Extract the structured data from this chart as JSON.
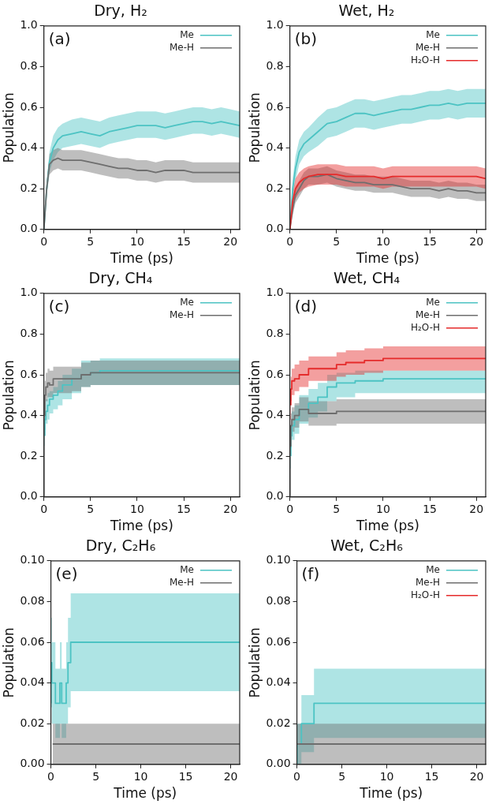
{
  "chart_data": [
    {
      "type": "line",
      "title": "Dry, H₂",
      "xlabel": "Time (ps)",
      "ylabel": "Population",
      "annotations": [
        "(a)"
      ],
      "legend": "top right",
      "xlim": [
        0,
        21
      ],
      "xticks": [
        0,
        5,
        10,
        15,
        20
      ],
      "ylim": [
        0,
        1
      ],
      "yticks": [
        {
          "value": 0,
          "label": "0.0"
        },
        {
          "value": 0.2,
          "label": "0.2"
        },
        {
          "value": 0.4,
          "label": "0.4"
        },
        {
          "value": 0.6,
          "label": "0.6"
        },
        {
          "value": 0.8,
          "label": "0.8"
        },
        {
          "value": 1,
          "label": "1.0"
        }
      ],
      "series": [
        {
          "name": "Me",
          "color": "#4cc3c3",
          "x": [
            0,
            0.3,
            0.6,
            1,
            1.5,
            2,
            3,
            4,
            5,
            6,
            7,
            8,
            9,
            10,
            11,
            12,
            13,
            14,
            15,
            16,
            17,
            18,
            19,
            20,
            21
          ],
          "values": [
            0,
            0.2,
            0.33,
            0.4,
            0.44,
            0.46,
            0.47,
            0.48,
            0.47,
            0.46,
            0.48,
            0.49,
            0.5,
            0.51,
            0.51,
            0.51,
            0.5,
            0.51,
            0.52,
            0.53,
            0.53,
            0.52,
            0.53,
            0.52,
            0.51
          ],
          "lower": [
            0,
            0.16,
            0.28,
            0.34,
            0.38,
            0.4,
            0.41,
            0.42,
            0.41,
            0.4,
            0.42,
            0.43,
            0.44,
            0.45,
            0.45,
            0.45,
            0.44,
            0.45,
            0.46,
            0.47,
            0.47,
            0.46,
            0.47,
            0.46,
            0.45
          ],
          "upper": [
            0,
            0.24,
            0.38,
            0.46,
            0.5,
            0.52,
            0.54,
            0.55,
            0.54,
            0.53,
            0.55,
            0.56,
            0.57,
            0.58,
            0.58,
            0.58,
            0.57,
            0.58,
            0.59,
            0.6,
            0.6,
            0.59,
            0.6,
            0.59,
            0.58
          ]
        },
        {
          "name": "Me-H",
          "color": "#6e6e6e",
          "x": [
            0,
            0.3,
            0.6,
            1,
            1.5,
            2,
            3,
            4,
            5,
            6,
            7,
            8,
            9,
            10,
            11,
            12,
            13,
            14,
            15,
            16,
            17,
            18,
            19,
            20,
            21
          ],
          "values": [
            0,
            0.2,
            0.32,
            0.34,
            0.35,
            0.34,
            0.34,
            0.34,
            0.33,
            0.32,
            0.31,
            0.3,
            0.3,
            0.29,
            0.29,
            0.28,
            0.29,
            0.29,
            0.29,
            0.28,
            0.28,
            0.28,
            0.28,
            0.28,
            0.28
          ],
          "lower": [
            0,
            0.17,
            0.27,
            0.29,
            0.3,
            0.29,
            0.29,
            0.29,
            0.28,
            0.27,
            0.26,
            0.25,
            0.25,
            0.24,
            0.24,
            0.23,
            0.24,
            0.24,
            0.24,
            0.23,
            0.23,
            0.23,
            0.23,
            0.23,
            0.23
          ],
          "upper": [
            0,
            0.23,
            0.37,
            0.39,
            0.4,
            0.39,
            0.39,
            0.39,
            0.38,
            0.37,
            0.36,
            0.35,
            0.35,
            0.34,
            0.34,
            0.33,
            0.34,
            0.34,
            0.34,
            0.33,
            0.33,
            0.33,
            0.33,
            0.33,
            0.33
          ]
        }
      ]
    },
    {
      "type": "line",
      "title": "Wet, H₂",
      "xlabel": "Time (ps)",
      "ylabel": "Population",
      "annotations": [
        "(b)"
      ],
      "legend": "top right",
      "xlim": [
        0,
        21
      ],
      "xticks": [
        0,
        5,
        10,
        15,
        20
      ],
      "ylim": [
        0,
        1
      ],
      "yticks": [
        {
          "value": 0,
          "label": "0.0"
        },
        {
          "value": 0.2,
          "label": "0.2"
        },
        {
          "value": 0.4,
          "label": "0.4"
        },
        {
          "value": 0.6,
          "label": "0.6"
        },
        {
          "value": 0.8,
          "label": "0.8"
        },
        {
          "value": 1,
          "label": "1.0"
        }
      ],
      "series": [
        {
          "name": "Me",
          "color": "#4cc3c3",
          "x": [
            0,
            0.3,
            0.6,
            1,
            1.5,
            2,
            3,
            4,
            5,
            6,
            7,
            8,
            9,
            10,
            11,
            12,
            13,
            14,
            15,
            16,
            17,
            18,
            19,
            20,
            21
          ],
          "values": [
            0,
            0.2,
            0.3,
            0.38,
            0.42,
            0.44,
            0.48,
            0.52,
            0.53,
            0.55,
            0.57,
            0.57,
            0.56,
            0.57,
            0.58,
            0.59,
            0.59,
            0.6,
            0.61,
            0.61,
            0.62,
            0.61,
            0.62,
            0.62,
            0.62
          ],
          "lower": [
            0,
            0.15,
            0.24,
            0.32,
            0.36,
            0.38,
            0.41,
            0.45,
            0.46,
            0.48,
            0.5,
            0.5,
            0.49,
            0.5,
            0.51,
            0.52,
            0.52,
            0.53,
            0.54,
            0.54,
            0.55,
            0.54,
            0.55,
            0.55,
            0.55
          ],
          "upper": [
            0,
            0.25,
            0.36,
            0.44,
            0.48,
            0.5,
            0.55,
            0.59,
            0.6,
            0.62,
            0.64,
            0.64,
            0.63,
            0.64,
            0.65,
            0.66,
            0.66,
            0.67,
            0.68,
            0.68,
            0.69,
            0.68,
            0.69,
            0.69,
            0.69
          ]
        },
        {
          "name": "Me-H",
          "color": "#6e6e6e",
          "x": [
            0,
            0.3,
            0.6,
            1,
            1.5,
            2,
            3,
            4,
            5,
            6,
            7,
            8,
            9,
            10,
            11,
            12,
            13,
            14,
            15,
            16,
            17,
            18,
            19,
            20,
            21
          ],
          "values": [
            0,
            0.1,
            0.17,
            0.2,
            0.24,
            0.26,
            0.26,
            0.27,
            0.25,
            0.24,
            0.23,
            0.23,
            0.22,
            0.22,
            0.22,
            0.21,
            0.2,
            0.2,
            0.2,
            0.19,
            0.2,
            0.19,
            0.19,
            0.18,
            0.18
          ],
          "lower": [
            0,
            0.07,
            0.13,
            0.16,
            0.2,
            0.22,
            0.22,
            0.23,
            0.21,
            0.2,
            0.19,
            0.19,
            0.18,
            0.18,
            0.18,
            0.17,
            0.16,
            0.16,
            0.16,
            0.15,
            0.16,
            0.15,
            0.15,
            0.14,
            0.14
          ],
          "upper": [
            0,
            0.13,
            0.21,
            0.24,
            0.28,
            0.3,
            0.3,
            0.31,
            0.29,
            0.28,
            0.27,
            0.27,
            0.26,
            0.26,
            0.26,
            0.25,
            0.24,
            0.24,
            0.24,
            0.23,
            0.24,
            0.23,
            0.23,
            0.22,
            0.22
          ]
        },
        {
          "name": "H₂O-H",
          "color": "#e52b2b",
          "x": [
            0,
            0.3,
            0.6,
            1,
            1.5,
            2,
            3,
            4,
            5,
            6,
            7,
            8,
            9,
            10,
            11,
            12,
            13,
            14,
            15,
            16,
            17,
            18,
            19,
            20,
            21
          ],
          "values": [
            0,
            0.14,
            0.2,
            0.23,
            0.25,
            0.26,
            0.27,
            0.27,
            0.27,
            0.26,
            0.26,
            0.26,
            0.26,
            0.25,
            0.26,
            0.26,
            0.26,
            0.26,
            0.26,
            0.26,
            0.26,
            0.26,
            0.26,
            0.26,
            0.25
          ],
          "lower": [
            0,
            0.1,
            0.15,
            0.18,
            0.2,
            0.21,
            0.22,
            0.22,
            0.22,
            0.21,
            0.21,
            0.21,
            0.21,
            0.2,
            0.21,
            0.21,
            0.21,
            0.21,
            0.21,
            0.21,
            0.21,
            0.21,
            0.21,
            0.21,
            0.2
          ],
          "upper": [
            0,
            0.18,
            0.25,
            0.28,
            0.3,
            0.31,
            0.32,
            0.32,
            0.32,
            0.31,
            0.31,
            0.31,
            0.31,
            0.3,
            0.31,
            0.31,
            0.31,
            0.31,
            0.31,
            0.31,
            0.31,
            0.31,
            0.31,
            0.31,
            0.3
          ]
        }
      ]
    },
    {
      "type": "step",
      "title": "Dry, CH₄",
      "xlabel": "Time (ps)",
      "ylabel": "Population",
      "annotations": [
        "(c)"
      ],
      "legend": "top right",
      "xlim": [
        0,
        21
      ],
      "xticks": [
        0,
        5,
        10,
        15,
        20
      ],
      "ylim": [
        0,
        1
      ],
      "yticks": [
        {
          "value": 0,
          "label": "0.0"
        },
        {
          "value": 0.2,
          "label": "0.2"
        },
        {
          "value": 0.4,
          "label": "0.4"
        },
        {
          "value": 0.6,
          "label": "0.6"
        },
        {
          "value": 0.8,
          "label": "0.8"
        },
        {
          "value": 1,
          "label": "1.0"
        }
      ],
      "series": [
        {
          "name": "Me",
          "color": "#4cc3c3",
          "x": [
            0,
            0.1,
            0.2,
            0.4,
            0.6,
            1,
            1.5,
            2,
            3,
            4,
            5,
            6,
            7,
            21
          ],
          "values": [
            null,
            0.3,
            0.38,
            0.42,
            0.45,
            0.48,
            0.5,
            0.52,
            0.55,
            0.58,
            0.6,
            0.61,
            0.62,
            0.62
          ],
          "lower": [
            0,
            0.25,
            0.33,
            0.36,
            0.38,
            0.41,
            0.43,
            0.45,
            0.48,
            0.51,
            0.54,
            0.55,
            0.55,
            0.55
          ],
          "upper": [
            0,
            0.35,
            0.43,
            0.48,
            0.51,
            0.52,
            0.54,
            0.57,
            0.6,
            0.63,
            0.67,
            0.67,
            0.68,
            0.68
          ]
        },
        {
          "name": "Me-H",
          "color": "#6e6e6e",
          "x": [
            0,
            0.1,
            0.2,
            0.4,
            0.6,
            1,
            2,
            3,
            4,
            5,
            6,
            21
          ],
          "values": [
            0,
            0.4,
            0.5,
            0.54,
            0.56,
            0.55,
            0.58,
            0.58,
            0.58,
            0.6,
            0.61,
            0.61
          ],
          "lower": [
            0,
            0.33,
            0.43,
            0.47,
            0.49,
            0.49,
            0.51,
            0.51,
            0.52,
            0.54,
            0.55,
            0.55
          ],
          "upper": [
            0,
            0.47,
            0.57,
            0.61,
            0.63,
            0.62,
            0.64,
            0.64,
            0.64,
            0.66,
            0.67,
            0.67
          ]
        }
      ]
    },
    {
      "type": "step",
      "title": "Wet, CH₄",
      "xlabel": "Time (ps)",
      "ylabel": "Population",
      "annotations": [
        "(d)"
      ],
      "legend": "top right",
      "xlim": [
        0,
        21
      ],
      "xticks": [
        0,
        5,
        10,
        15,
        20
      ],
      "ylim": [
        0,
        1
      ],
      "yticks": [
        {
          "value": 0,
          "label": "0.0"
        },
        {
          "value": 0.2,
          "label": "0.2"
        },
        {
          "value": 0.4,
          "label": "0.4"
        },
        {
          "value": 0.6,
          "label": "0.6"
        },
        {
          "value": 0.8,
          "label": "0.8"
        },
        {
          "value": 1,
          "label": "1.0"
        }
      ],
      "series": [
        {
          "name": "Me",
          "color": "#4cc3c3",
          "x": [
            0,
            0.1,
            0.2,
            0.5,
            1,
            2,
            3,
            4,
            5,
            7,
            10,
            12,
            21
          ],
          "values": [
            null,
            0.2,
            0.3,
            0.35,
            0.38,
            0.43,
            0.46,
            0.49,
            0.54,
            0.56,
            0.57,
            0.58,
            0.58
          ],
          "lower": [
            0,
            0.14,
            0.24,
            0.28,
            0.31,
            0.36,
            0.39,
            0.42,
            0.47,
            0.49,
            0.51,
            0.51,
            0.51
          ],
          "upper": [
            0,
            0.26,
            0.36,
            0.42,
            0.45,
            0.5,
            0.53,
            0.56,
            0.6,
            0.61,
            0.62,
            0.62,
            0.62
          ]
        },
        {
          "name": "Me-H",
          "color": "#6e6e6e",
          "x": [
            0,
            0.1,
            0.2,
            0.5,
            1,
            2,
            3,
            5,
            12,
            21
          ],
          "values": [
            0,
            0.25,
            0.35,
            0.38,
            0.4,
            0.43,
            0.41,
            0.41,
            0.42,
            0.42
          ],
          "lower": [
            0,
            0.2,
            0.29,
            0.32,
            0.34,
            0.37,
            0.35,
            0.35,
            0.36,
            0.36
          ],
          "upper": [
            0,
            0.3,
            0.41,
            0.44,
            0.46,
            0.49,
            0.47,
            0.47,
            0.48,
            0.48
          ]
        },
        {
          "name": "H₂O-H",
          "color": "#e52b2b",
          "x": [
            0,
            0.1,
            0.2,
            0.5,
            1,
            2,
            3,
            5,
            6,
            8,
            10,
            12,
            21
          ],
          "values": [
            null,
            0.45,
            0.53,
            0.57,
            0.58,
            0.6,
            0.63,
            0.63,
            0.65,
            0.66,
            0.67,
            0.68,
            0.68
          ],
          "lower": [
            0,
            0.38,
            0.47,
            0.5,
            0.52,
            0.54,
            0.57,
            0.57,
            0.59,
            0.6,
            0.61,
            0.62,
            0.62
          ],
          "upper": [
            0,
            0.52,
            0.59,
            0.63,
            0.65,
            0.67,
            0.69,
            0.69,
            0.71,
            0.72,
            0.73,
            0.74,
            0.74
          ]
        }
      ]
    },
    {
      "type": "step",
      "title": "Dry, C₂H₆",
      "xlabel": "Time (ps)",
      "ylabel": "Population",
      "annotations": [
        "(e)"
      ],
      "legend": "top right",
      "xlim": [
        0,
        21
      ],
      "xticks": [
        0,
        5,
        10,
        15,
        20
      ],
      "ylim": [
        0,
        0.1
      ],
      "yticks": [
        {
          "value": 0,
          "label": "0.00"
        },
        {
          "value": 0.02,
          "label": "0.02"
        },
        {
          "value": 0.04,
          "label": "0.04"
        },
        {
          "value": 0.06,
          "label": "0.06"
        },
        {
          "value": 0.08,
          "label": "0.08"
        },
        {
          "value": 0.1,
          "label": "0.10"
        }
      ],
      "series": [
        {
          "name": "Me",
          "color": "#4cc3c3",
          "x": [
            0,
            0.1,
            0.5,
            1,
            1.2,
            1.7,
            1.9,
            2.2,
            14.5,
            21
          ],
          "values": [
            0.03,
            0.05,
            0.04,
            0.03,
            0.04,
            0.03,
            0.04,
            0.05,
            0.06,
            0.06
          ],
          "lower": [
            0.02,
            0.028,
            0.02,
            0.013,
            0.02,
            0.013,
            0.02,
            0.028,
            0.036,
            0.036
          ],
          "upper": [
            0.04,
            0.072,
            0.06,
            0.047,
            0.06,
            0.047,
            0.06,
            0.072,
            0.084,
            0.084
          ]
        },
        {
          "name": "Me-H",
          "color": "#6e6e6e",
          "x": [
            0.2,
            21
          ],
          "values": [
            0.01,
            0.01
          ],
          "lower": [
            0,
            0
          ],
          "upper": [
            0.02,
            0.02
          ]
        }
      ]
    },
    {
      "type": "step",
      "title": "Wet, C₂H₆",
      "xlabel": "Time (ps)",
      "ylabel": "Population",
      "annotations": [
        "(f)"
      ],
      "legend": "top right",
      "xlim": [
        0,
        21
      ],
      "xticks": [
        0,
        5,
        10,
        15,
        20
      ],
      "ylim": [
        0,
        0.1
      ],
      "yticks": [
        {
          "value": 0,
          "label": "0.00"
        },
        {
          "value": 0.02,
          "label": "0.02"
        },
        {
          "value": 0.04,
          "label": "0.04"
        },
        {
          "value": 0.06,
          "label": "0.06"
        },
        {
          "value": 0.08,
          "label": "0.08"
        },
        {
          "value": 0.1,
          "label": "0.10"
        }
      ],
      "series": [
        {
          "name": "Me",
          "color": "#4cc3c3",
          "x": [
            0,
            0.3,
            0.5,
            1.9,
            7.4,
            21
          ],
          "values": [
            0,
            0.01,
            0.01,
            0.02,
            0.03,
            0.03
          ],
          "lower": [
            0,
            0,
            0,
            0.006,
            0.013,
            0.013
          ],
          "upper": [
            0.02,
            0.02,
            0.02,
            0.034,
            0.047,
            0.047
          ]
        },
        {
          "name": "Me-H",
          "color": "#6e6e6e",
          "x": [
            0,
            21
          ],
          "values": [
            0.01,
            0.01
          ],
          "lower": [
            0,
            0
          ],
          "upper": [
            0.02,
            0.02
          ]
        },
        {
          "name": "H₂O-H",
          "color": "#e52b2b"
        }
      ]
    }
  ]
}
